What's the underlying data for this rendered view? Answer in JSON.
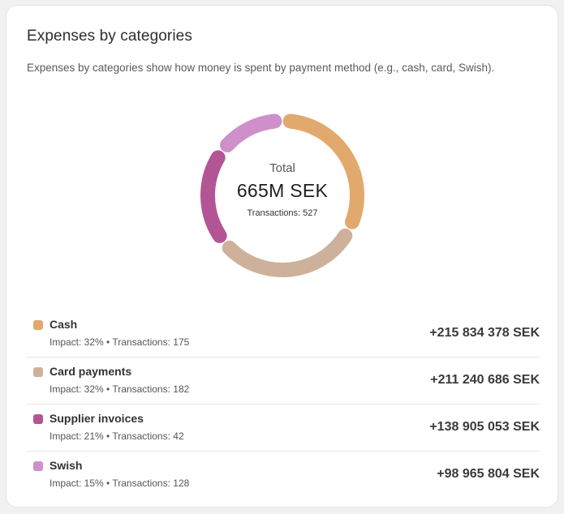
{
  "card": {
    "title": "Expenses by categories",
    "subtitle": "Expenses by categories show how money is spent by payment method (e.g., cash, card, Swish)."
  },
  "chart_data": {
    "type": "pie",
    "total_label": "Total",
    "total_value": "665M SEK",
    "transactions_label": "Transactions: 527",
    "series": [
      {
        "name": "Cash",
        "value": 215834378,
        "impact_pct": 32,
        "transactions": 175,
        "color": "#e2a96d"
      },
      {
        "name": "Card payments",
        "value": 211240686,
        "impact_pct": 32,
        "transactions": 182,
        "color": "#cdb19b"
      },
      {
        "name": "Supplier invoices",
        "value": 138905053,
        "impact_pct": 21,
        "transactions": 42,
        "color": "#b35595"
      },
      {
        "name": "Swish",
        "value": 98965804,
        "impact_pct": 15,
        "transactions": 128,
        "color": "#cf8fc9"
      }
    ]
  },
  "rows": [
    {
      "name": "Cash",
      "meta": "Impact: 32% • Transactions: 175",
      "amount": "+215 834 378 SEK",
      "color": "#e2a96d"
    },
    {
      "name": "Card payments",
      "meta": "Impact: 32% • Transactions: 182",
      "amount": "+211 240 686 SEK",
      "color": "#cdb19b"
    },
    {
      "name": "Supplier invoices",
      "meta": "Impact: 21% • Transactions: 42",
      "amount": "+138 905 053 SEK",
      "color": "#b35595"
    },
    {
      "name": "Swish",
      "meta": "Impact: 15% • Transactions: 128",
      "amount": "+98 965 804 SEK",
      "color": "#cf8fc9"
    }
  ]
}
